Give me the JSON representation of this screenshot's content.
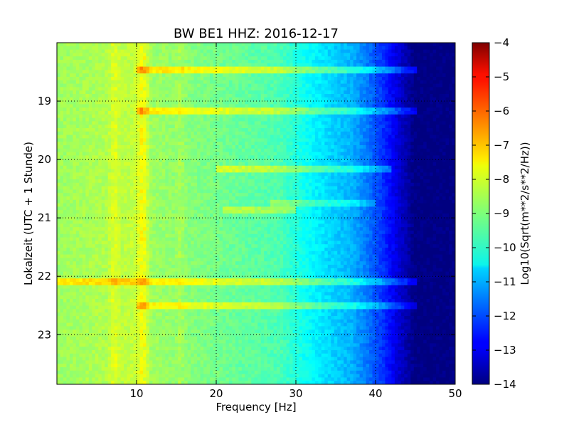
{
  "chart_data": {
    "type": "heatmap",
    "title": "BW BE1 HHZ: 2016-12-17",
    "xlabel": "Frequency [Hz]",
    "ylabel": "Lokalzeit (UTC + 1 Stunde)",
    "colorbar_label": "Log10(Sqrt(m**2/s**2/Hz))",
    "xlim": [
      0,
      50
    ],
    "ylim": [
      23.85,
      18.0
    ],
    "x_ticks": [
      10,
      20,
      30,
      40,
      50
    ],
    "y_ticks": [
      19,
      20,
      21,
      22,
      23
    ],
    "color_range": [
      -14,
      -4
    ],
    "colorbar_ticks": [
      -4,
      -5,
      -6,
      -7,
      -8,
      -9,
      -10,
      -11,
      -12,
      -13,
      -14
    ],
    "colormap": "jet",
    "grid": true,
    "baseline_profile": [
      {
        "f": 0,
        "v": -8.7
      },
      {
        "f": 7,
        "v": -8.5
      },
      {
        "f": 10,
        "v": -8.3
      },
      {
        "f": 12,
        "v": -8.7
      },
      {
        "f": 20,
        "v": -9.1
      },
      {
        "f": 28,
        "v": -9.5
      },
      {
        "f": 31,
        "v": -10.1
      },
      {
        "f": 34,
        "v": -10.6
      },
      {
        "f": 37,
        "v": -11.0
      },
      {
        "f": 39,
        "v": -11.6
      },
      {
        "f": 41,
        "v": -12.3
      },
      {
        "f": 43,
        "v": -13.2
      },
      {
        "f": 45,
        "v": -14.0
      },
      {
        "f": 50,
        "v": -14.0
      }
    ],
    "horizontal_bands": [
      {
        "time": 18.47,
        "f_start": 10,
        "f_end": 45,
        "delta": 1.2
      },
      {
        "time": 19.16,
        "f_start": 10,
        "f_end": 45,
        "delta": 1.1
      },
      {
        "time": 20.15,
        "f_start": 20,
        "f_end": 42,
        "delta": 1.0
      },
      {
        "time": 20.75,
        "f_start": 27,
        "f_end": 40,
        "delta": 0.7
      },
      {
        "time": 20.87,
        "f_start": 21,
        "f_end": 30,
        "delta": 0.8
      },
      {
        "time": 22.09,
        "f_start": 0,
        "f_end": 45,
        "delta": 1.1
      },
      {
        "time": 22.5,
        "f_start": 10,
        "f_end": 45,
        "delta": 1.0
      }
    ],
    "vertical_bands": [
      {
        "freq": 7.2,
        "delta": 0.5
      },
      {
        "freq": 10.8,
        "delta": 0.8
      },
      {
        "freq": 15.5,
        "delta": 0.3
      }
    ]
  }
}
